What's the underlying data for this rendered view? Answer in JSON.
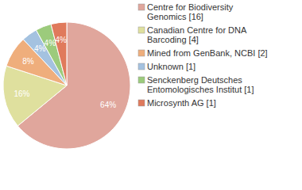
{
  "chart_data": {
    "type": "pie",
    "categories": [
      "Centre for Biodiversity Genomics [16]",
      "Canadian Centre for DNA Barcoding [4]",
      "Mined from GenBank, NCBI [2]",
      "Unknown [1]",
      "Senckenberg Deutsches Entomologisches Institut [1]",
      "Microsynth AG [1]"
    ],
    "values": [
      64,
      16,
      8,
      4,
      4,
      4
    ],
    "value_labels": [
      "64%",
      "16%",
      "8%",
      "4%",
      "4%",
      "4%"
    ],
    "colors": [
      "#e0a69c",
      "#dfe09e",
      "#efae7c",
      "#a4c2e0",
      "#9ccb7c",
      "#e07a5c"
    ],
    "data_labels": true,
    "legend": "upper right"
  }
}
